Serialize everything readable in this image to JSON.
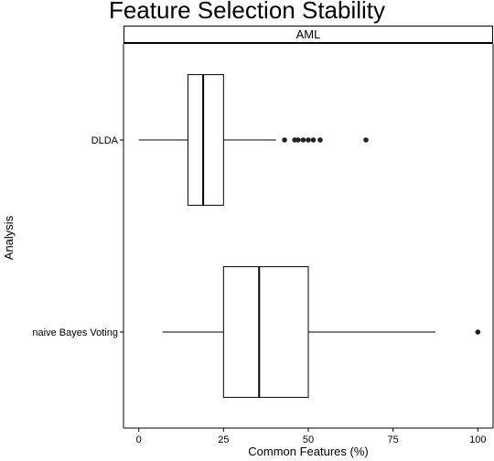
{
  "chart_data": {
    "type": "boxplot",
    "orientation": "horizontal",
    "title": "Feature Selection Stability",
    "facet": "AML",
    "xlabel": "Common Features (%)",
    "ylabel": "Analysis",
    "xlim": [
      -4.5,
      104.5
    ],
    "xticks": [
      0,
      25,
      50,
      75,
      100
    ],
    "categories": [
      "DLDA",
      "naive Bayes Voting"
    ],
    "grid": false,
    "series": [
      {
        "category": "DLDA",
        "whisker_low": 0,
        "q1": 14.5,
        "median": 19,
        "q3": 25,
        "whisker_high": 40.5,
        "outliers": [
          43,
          46,
          47,
          48.5,
          50,
          51.5,
          53.5,
          67
        ]
      },
      {
        "category": "naive Bayes Voting",
        "whisker_low": 7,
        "q1": 25,
        "median": 35.5,
        "q3": 50,
        "whisker_high": 87.5,
        "outliers": [
          100
        ]
      }
    ]
  }
}
